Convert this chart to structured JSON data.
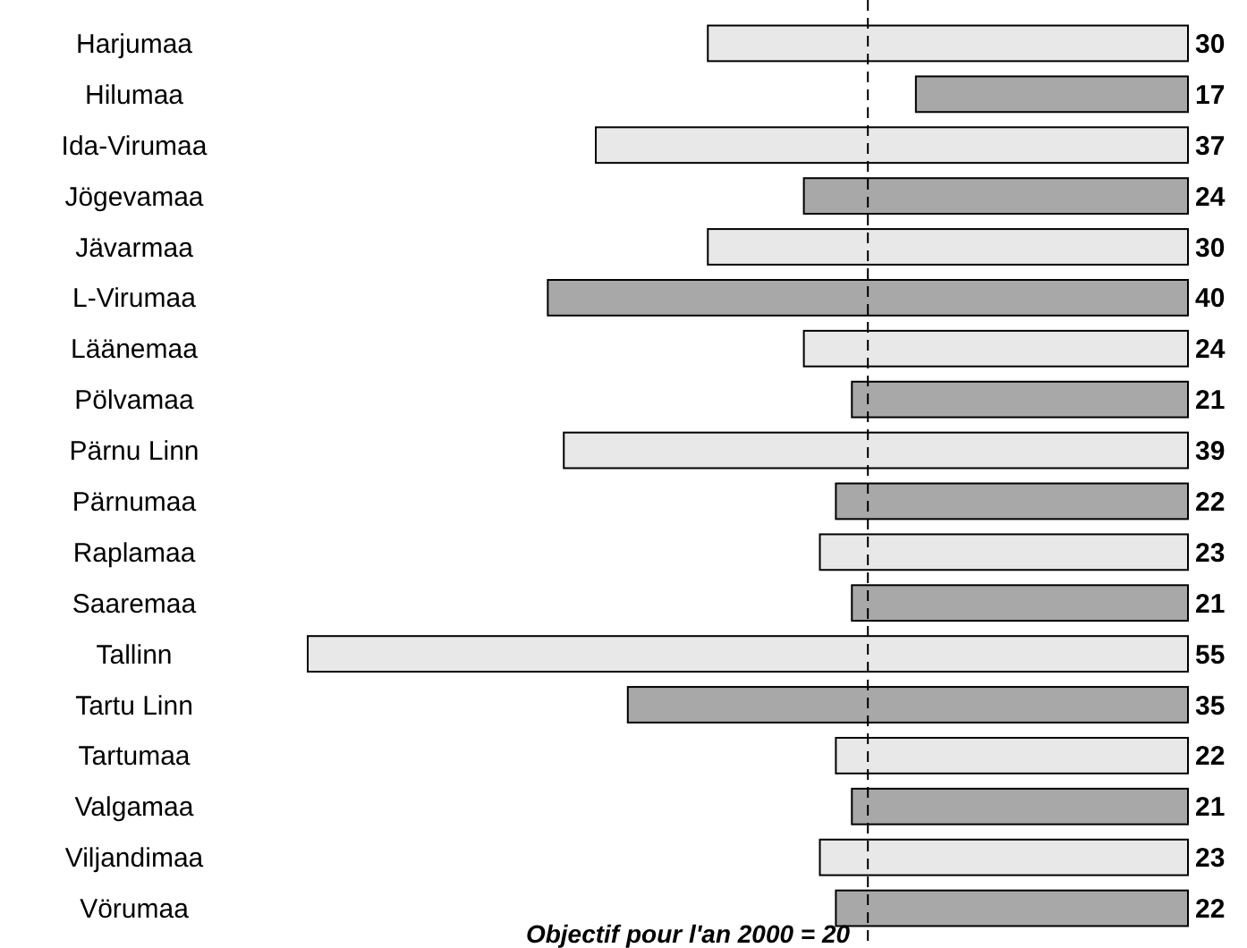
{
  "chart_data": {
    "type": "bar",
    "orientation": "horizontal",
    "categories": [
      "Harjumaa",
      "Hilumaa",
      "Ida-Virumaa",
      "Jögevamaa",
      "Jävarmaa",
      "L-Virumaa",
      "Läänemaa",
      "Pölvamaa",
      "Pärnu Linn",
      "Pärnumaa",
      "Raplamaa",
      "Saaremaa",
      "Tallinn",
      "Tartu Linn",
      "Tartumaa",
      "Valgamaa",
      "Viljandimaa",
      "Vörumaa"
    ],
    "values": [
      30,
      17,
      37,
      24,
      30,
      40,
      24,
      21,
      39,
      22,
      23,
      21,
      55,
      35,
      22,
      21,
      23,
      22
    ],
    "colors": [
      "#e8e8e8",
      "#a8a8a8",
      "#e8e8e8",
      "#a8a8a8",
      "#e8e8e8",
      "#a8a8a8",
      "#e8e8e8",
      "#a8a8a8",
      "#e8e8e8",
      "#a8a8a8",
      "#e8e8e8",
      "#a8a8a8",
      "#e8e8e8",
      "#a8a8a8",
      "#e8e8e8",
      "#a8a8a8",
      "#e8e8e8",
      "#a8a8a8"
    ],
    "xlim": [
      55,
      0
    ],
    "data_labels": true,
    "ref_lines": [
      {
        "axis": "x",
        "value": 20,
        "label": "Objectif pour l'an 2000 = 20",
        "line_style": "dashed",
        "color": "#000000"
      }
    ]
  }
}
